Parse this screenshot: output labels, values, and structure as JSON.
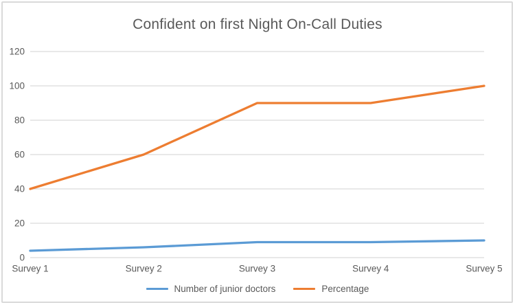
{
  "chart_data": {
    "type": "line",
    "title": "Confident on first Night On-Call Duties",
    "categories": [
      "Survey 1",
      "Survey 2",
      "Survey 3",
      "Survey 4",
      "Survey 5"
    ],
    "series": [
      {
        "name": "Number of junior doctors",
        "color": "#5B9BD5",
        "values": [
          4,
          6,
          9,
          9,
          10
        ]
      },
      {
        "name": "Percentage",
        "color": "#ED7D31",
        "values": [
          40,
          60,
          90,
          90,
          100
        ]
      }
    ],
    "xlabel": "",
    "ylabel": "",
    "ylim": [
      0,
      120
    ],
    "ytick_interval": 20,
    "grid": true,
    "legend_position": "bottom",
    "colors": {
      "text": "#595959",
      "gridline": "#D9D9D9",
      "frame_border": "#D9D9D9",
      "background": "#FFFFFF"
    }
  }
}
